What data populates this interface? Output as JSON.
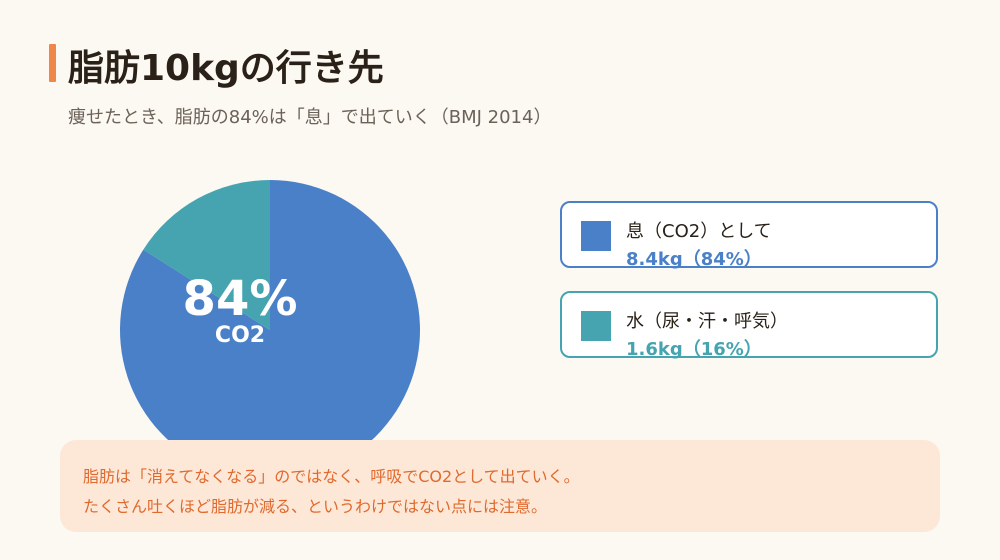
{
  "title": "脂肪10kgの行き先",
  "subtitle": "痩せたとき、脂肪の84%は「息」で出ていく（BMJ 2014）",
  "colors": {
    "accent": "#f0874a",
    "breath": "#4a80c8",
    "water": "#45a4b0",
    "note_text": "#e06a2e",
    "note_bg": "#fde8d8"
  },
  "chart_data": {
    "type": "pie",
    "slices": [
      {
        "label": "息（CO2）として",
        "value": 8.4,
        "percent": 84,
        "value_label": "8.4kg（84%）",
        "color": "#4a80c8"
      },
      {
        "label": "水（尿・汗・呼気）",
        "value": 1.6,
        "percent": 16,
        "value_label": "1.6kg（16%）",
        "color": "#45a4b0"
      }
    ],
    "center_label": "84%",
    "center_sublabel": "CO2"
  },
  "note": {
    "lines": [
      "脂肪は「消えてなくなる」のではなく、呼吸でCO2として出ていく。",
      "たくさん吐くほど脂肪が減る、というわけではない点には注意。"
    ]
  }
}
